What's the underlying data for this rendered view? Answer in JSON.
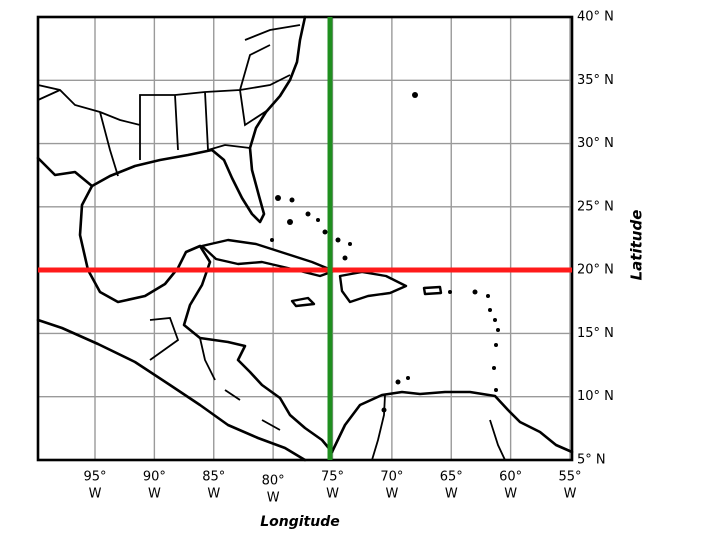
{
  "map": {
    "latitude_labels": [
      "40° N",
      "35° N",
      "30° N",
      "25° N",
      "20° N",
      "15° N",
      "10° N",
      "5° N"
    ],
    "longitude_labels": [
      {
        "deg": "95°",
        "dir": "W"
      },
      {
        "deg": "90°",
        "dir": "W"
      },
      {
        "deg": "85°",
        "dir": "W"
      },
      {
        "deg": "80°",
        "dir": "W"
      },
      {
        "deg": "75°",
        "dir": "W"
      },
      {
        "deg": "70°",
        "dir": "W"
      },
      {
        "deg": "65°",
        "dir": "W"
      },
      {
        "deg": "60°",
        "dir": "W"
      },
      {
        "deg": "55°",
        "dir": "W"
      }
    ],
    "y_axis_title": "Latitude",
    "x_axis_title": "Longitude"
  }
}
